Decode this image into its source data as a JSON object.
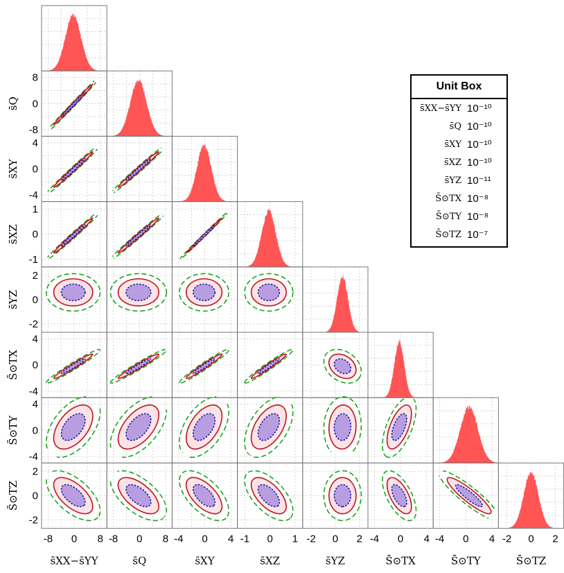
{
  "chart_data": {
    "type": "corner",
    "parameters": [
      {
        "label": "s̄XX−s̄YY",
        "ticks": [
          -8,
          -4,
          0,
          4,
          8
        ],
        "range": [
          -10,
          10
        ]
      },
      {
        "label": "s̄Q",
        "ticks": [
          -8,
          -4,
          0,
          4,
          8
        ],
        "range": [
          -10,
          10
        ]
      },
      {
        "label": "s̄XY",
        "ticks": [
          -4,
          -2,
          0,
          2,
          4
        ],
        "range": [
          -5,
          5
        ]
      },
      {
        "label": "s̄XZ",
        "ticks": [
          -1,
          0,
          1
        ],
        "range": [
          -1.3,
          1.3
        ]
      },
      {
        "label": "s̄YZ",
        "ticks": [
          -2,
          0,
          2
        ],
        "range": [
          -2.7,
          2.7
        ]
      },
      {
        "label": "S̄⊙TX",
        "ticks": [
          -4,
          0,
          4
        ],
        "range": [
          -5,
          5
        ]
      },
      {
        "label": "S̄⊙TY",
        "ticks": [
          -4,
          0,
          4
        ],
        "range": [
          -5,
          5
        ]
      },
      {
        "label": "S̄⊙TZ",
        "ticks": [
          -2,
          0,
          2
        ],
        "range": [
          -2.7,
          2.7
        ]
      }
    ],
    "x_tick_labels": [
      [
        "-8",
        "0",
        "8"
      ],
      [
        "-8",
        "0",
        "8"
      ],
      [
        "-4",
        "0",
        "4"
      ],
      [
        "-1",
        "0",
        "1"
      ],
      [
        "-2",
        "0",
        "2"
      ],
      [
        "-4",
        "0",
        "4"
      ],
      [
        "-4",
        "0",
        "4"
      ],
      [
        "-2",
        "0",
        "2"
      ]
    ],
    "y_tick_labels": [
      null,
      [
        "8",
        "0",
        "-8"
      ],
      [
        "4",
        "0",
        "-4"
      ],
      [
        "1",
        "0",
        "-1"
      ],
      [
        "2",
        "0",
        "-2"
      ],
      [
        "4",
        "0",
        "-4"
      ],
      [
        "4",
        "0",
        "-4"
      ],
      [
        "2",
        "0",
        "-2"
      ]
    ],
    "histograms": [
      {
        "mean": -0.3,
        "sigma": 2.4
      },
      {
        "mean": -0.3,
        "sigma": 2.5
      },
      {
        "mean": -0.1,
        "sigma": 1.1
      },
      {
        "mean": -0.05,
        "sigma": 0.28
      },
      {
        "mean": 0.6,
        "sigma": 0.45
      },
      {
        "mean": -0.2,
        "sigma": 0.75
      },
      {
        "mean": 0.5,
        "sigma": 1.35
      },
      {
        "mean": 0.0,
        "sigma": 0.6
      }
    ],
    "contour_levels": [
      "1-sigma",
      "2-sigma",
      "3-sigma"
    ],
    "correlations": [
      [
        1,
        0.995,
        0.99,
        0.99,
        0,
        0.97,
        0.5,
        -0.6
      ],
      [
        0.995,
        1,
        0.99,
        0.99,
        0,
        0.97,
        0.55,
        -0.6
      ],
      [
        0.99,
        0.99,
        1,
        0.997,
        0,
        0.97,
        0.5,
        -0.6
      ],
      [
        0.99,
        0.99,
        0.997,
        1,
        0,
        0.97,
        0.5,
        -0.6
      ],
      [
        0,
        0,
        0,
        0,
        1,
        -0.3,
        0.05,
        0
      ],
      [
        0.97,
        0.97,
        0.97,
        0.97,
        -0.3,
        1,
        0.6,
        -0.6
      ],
      [
        0.5,
        0.55,
        0.5,
        0.5,
        0.05,
        0.6,
        1,
        -0.9
      ],
      [
        -0.6,
        -0.6,
        -0.6,
        -0.6,
        0,
        -0.6,
        -0.9,
        1
      ]
    ],
    "grid": true,
    "legend": "none"
  },
  "unit_box": {
    "title": "Unit Box",
    "rows": [
      {
        "param": "s̄XX−s̄YY",
        "unit": "10⁻¹⁰"
      },
      {
        "param": "s̄Q",
        "unit": "10⁻¹⁰"
      },
      {
        "param": "s̄XY",
        "unit": "10⁻¹⁰"
      },
      {
        "param": "s̄XZ",
        "unit": "10⁻¹⁰"
      },
      {
        "param": "s̄YZ",
        "unit": "10⁻¹¹"
      },
      {
        "param": "S̄⊙TX",
        "unit": "10⁻⁸"
      },
      {
        "param": "S̄⊙TY",
        "unit": "10⁻⁸"
      },
      {
        "param": "S̄⊙TZ",
        "unit": "10⁻⁷"
      }
    ]
  },
  "colors": {
    "hist_fill": "#ff5555",
    "contour_1sigma_line": "#1a1aa8",
    "contour_1sigma_fill": "#b89ee0",
    "contour_2sigma_line": "#c0141b",
    "contour_2sigma_fill": "#fbe3e6",
    "contour_3sigma_line": "#1ea31e",
    "grid": "#b8b8b8",
    "frame": "#777777"
  }
}
